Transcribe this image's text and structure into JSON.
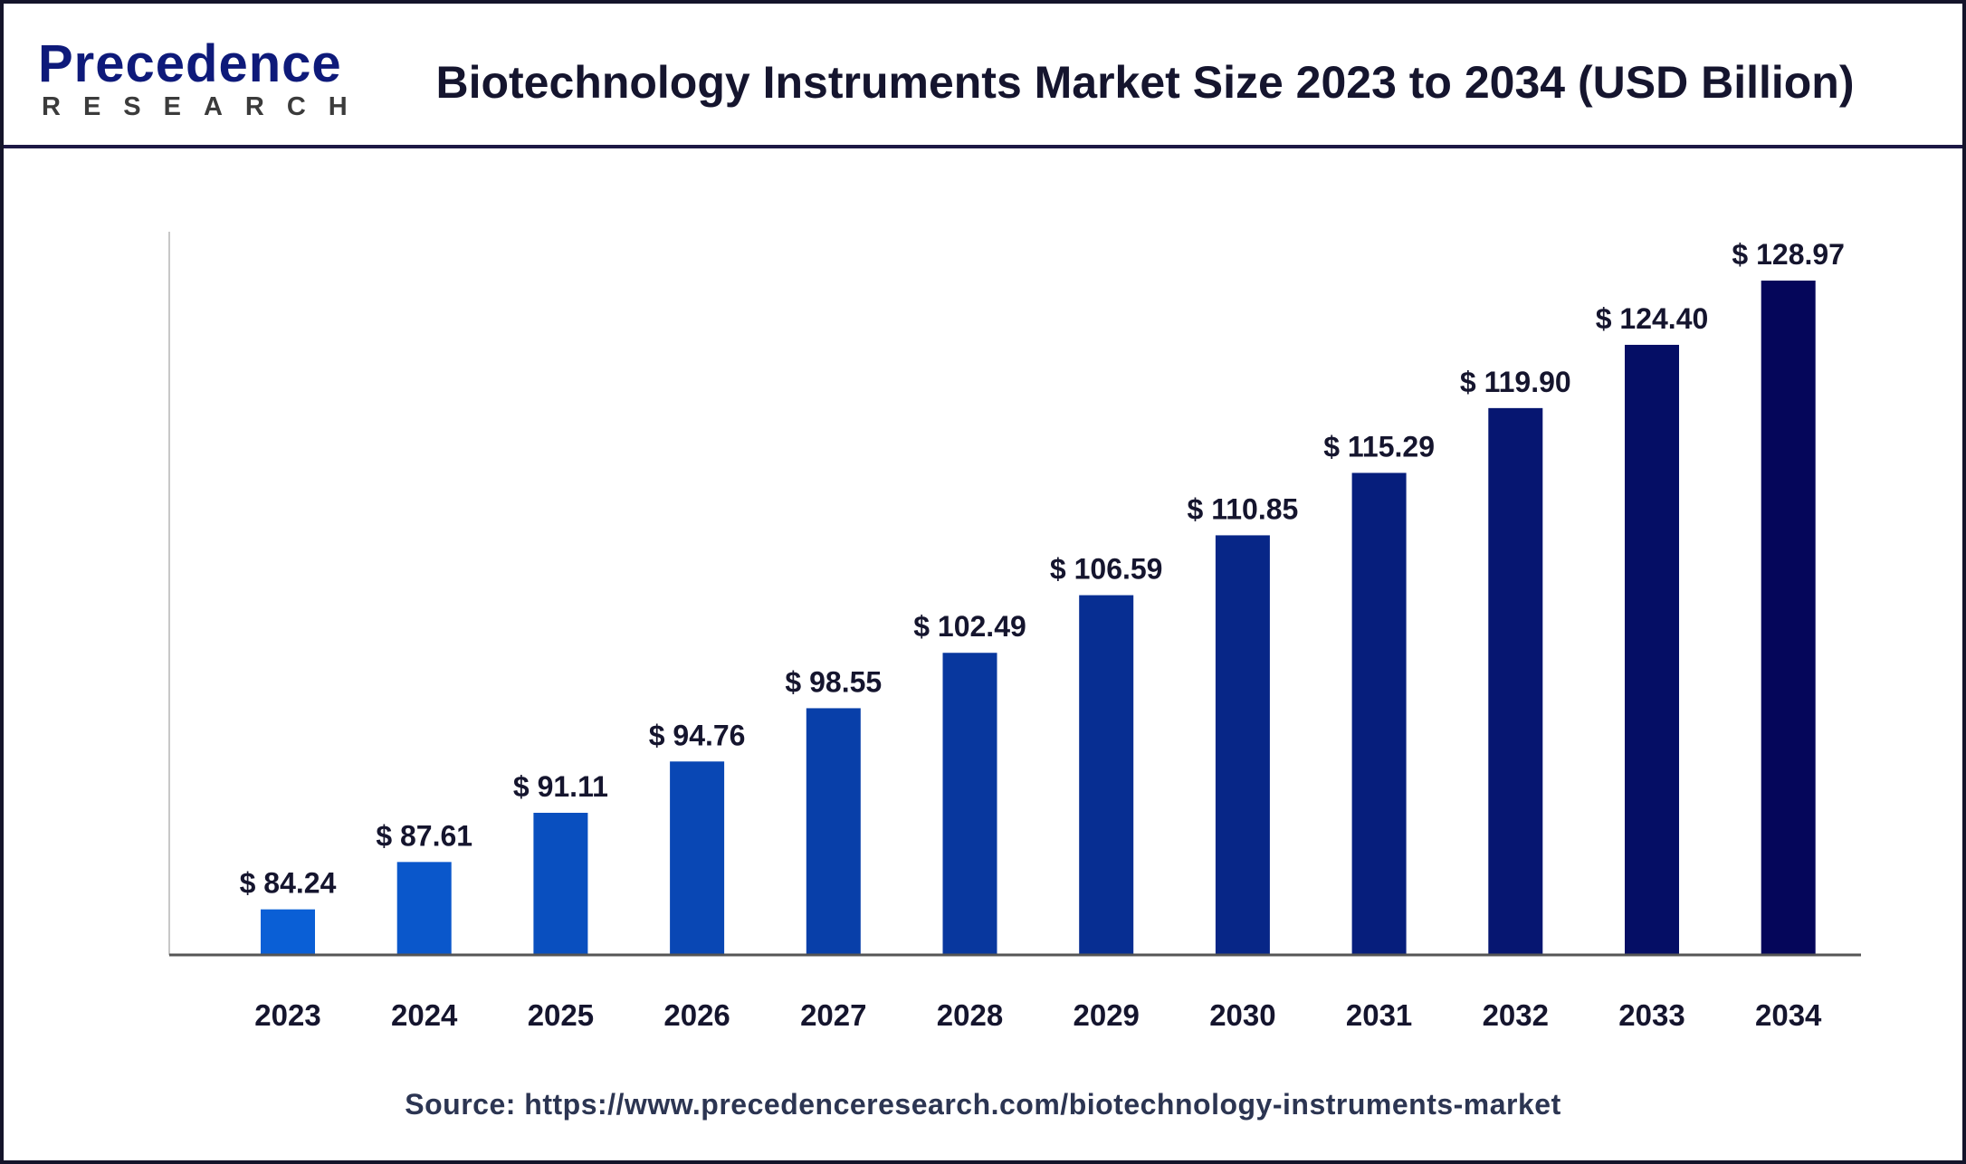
{
  "header": {
    "logo_text": "Precedence",
    "logo_subtext": "RESEARCH",
    "title": "Biotechnology Instruments Market Size 2023 to 2034 (USD Billion)"
  },
  "source": "Source: https://www.precedenceresearch.com/biotechnology-instruments-market",
  "colors": {
    "bar_start": "#0a5fd6",
    "bar_end": "#05065a",
    "text": "#15152e"
  },
  "chart_data": {
    "type": "bar",
    "title": "Biotechnology Instruments Market Size 2023 to 2034 (USD Billion)",
    "xlabel": "",
    "ylabel": "",
    "categories": [
      "2023",
      "2024",
      "2025",
      "2026",
      "2027",
      "2028",
      "2029",
      "2030",
      "2031",
      "2032",
      "2033",
      "2034"
    ],
    "values": [
      84.24,
      87.61,
      91.11,
      94.76,
      98.55,
      102.49,
      106.59,
      110.85,
      115.29,
      119.9,
      124.4,
      128.97
    ],
    "data_labels": [
      "$ 84.24",
      "$ 87.61",
      "$ 91.11",
      "$ 94.76",
      "$ 98.55",
      "$ 102.49",
      "$ 106.59",
      "$ 110.85",
      "$ 115.29",
      "$ 119.90",
      "$ 124.40",
      "$ 128.97"
    ],
    "ylim": [
      81,
      131
    ],
    "grid": false,
    "legend": "none"
  }
}
